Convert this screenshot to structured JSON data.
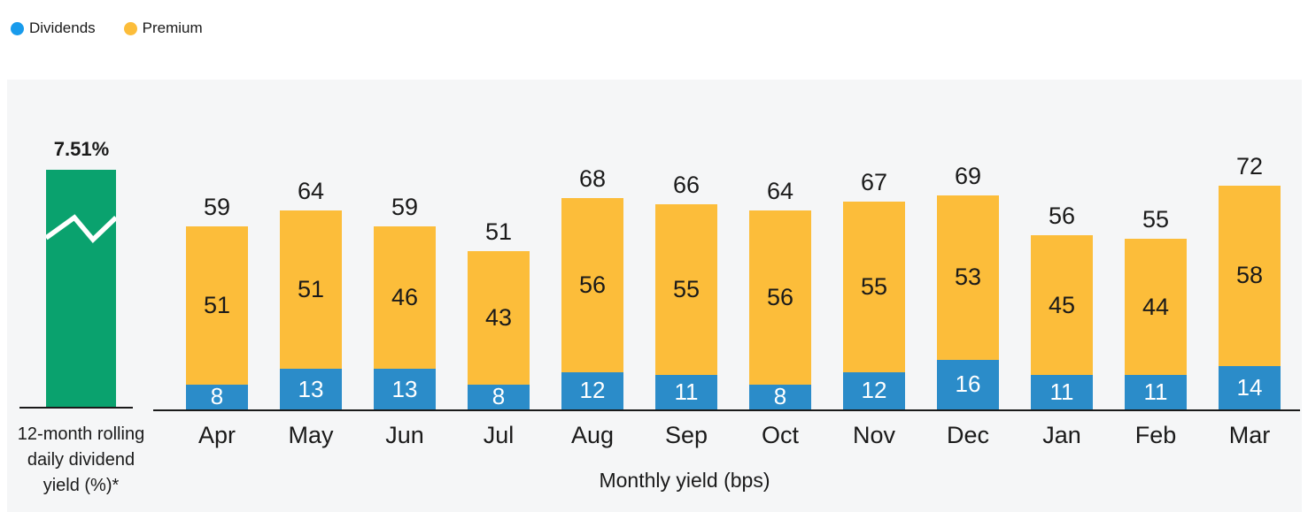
{
  "legend": [
    {
      "label": "Dividends",
      "color": "#189BEC"
    },
    {
      "label": "Premium",
      "color": "#FCBD3A"
    }
  ],
  "left_bar": {
    "value_label": "7.51%",
    "caption_lines": [
      "12-month rolling",
      "daily dividend",
      "yield (%)*"
    ],
    "color": "#0AA26E"
  },
  "chart_data": {
    "type": "bar",
    "stacked": true,
    "title": "",
    "xlabel": "Monthly yield (bps)",
    "ylabel": "",
    "grid": false,
    "legend_position": "top-left",
    "categories": [
      "Apr",
      "May",
      "Jun",
      "Jul",
      "Aug",
      "Sep",
      "Oct",
      "Nov",
      "Dec",
      "Jan",
      "Feb",
      "Mar"
    ],
    "series": [
      {
        "name": "Dividends",
        "color": "#2B8CC9",
        "values": [
          8,
          13,
          13,
          8,
          12,
          11,
          8,
          12,
          16,
          11,
          11,
          14
        ]
      },
      {
        "name": "Premium",
        "color": "#FCBD3A",
        "values": [
          51,
          51,
          46,
          43,
          56,
          55,
          56,
          55,
          53,
          45,
          44,
          58
        ]
      }
    ],
    "totals": [
      59,
      64,
      59,
      51,
      68,
      66,
      64,
      67,
      69,
      56,
      55,
      72
    ],
    "left_annotation": {
      "value": "7.51%",
      "label": "12-month rolling daily dividend yield (%)*",
      "color": "#0AA26E"
    },
    "colors": {
      "dividends": "#2B8CC9",
      "premium": "#FCBD3A",
      "rolling_yield": "#0AA26E",
      "panel_background": "#F5F6F7",
      "axis_line": "#1a1a1a"
    }
  }
}
